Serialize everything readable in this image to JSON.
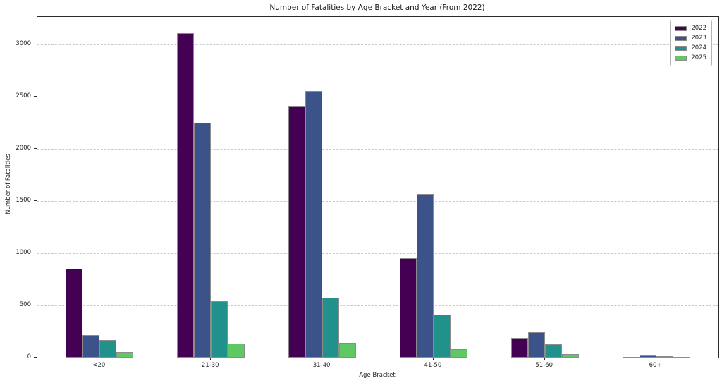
{
  "chart_data": {
    "type": "bar",
    "title": "Number of Fatalities by Age Bracket and Year (From 2022)",
    "xlabel": "Age Bracket",
    "ylabel": "Number of Fatalities",
    "categories": [
      "<20",
      "21-30",
      "31-40",
      "41-50",
      "51-60",
      "60+"
    ],
    "series": [
      {
        "name": "2022",
        "color": "#440154",
        "values": [
          850,
          3110,
          2410,
          950,
          190,
          10
        ]
      },
      {
        "name": "2023",
        "color": "#3b528b",
        "values": [
          215,
          2250,
          2555,
          1565,
          245,
          20
        ]
      },
      {
        "name": "2024",
        "color": "#21918c",
        "values": [
          170,
          540,
          575,
          410,
          130,
          15
        ]
      },
      {
        "name": "2025",
        "color": "#5ec962",
        "values": [
          55,
          135,
          145,
          80,
          35,
          5
        ]
      }
    ],
    "ylim": [
      0,
      3265
    ],
    "yticks": [
      "0",
      "500",
      "1000",
      "1500",
      "2000",
      "2500",
      "3000"
    ],
    "grid": "horizontal-dashed",
    "legend_position": "upper right",
    "bar_edge_color": "#8c8c8c",
    "legend_labels": [
      "2022",
      "2023",
      "2024",
      "2025"
    ]
  }
}
